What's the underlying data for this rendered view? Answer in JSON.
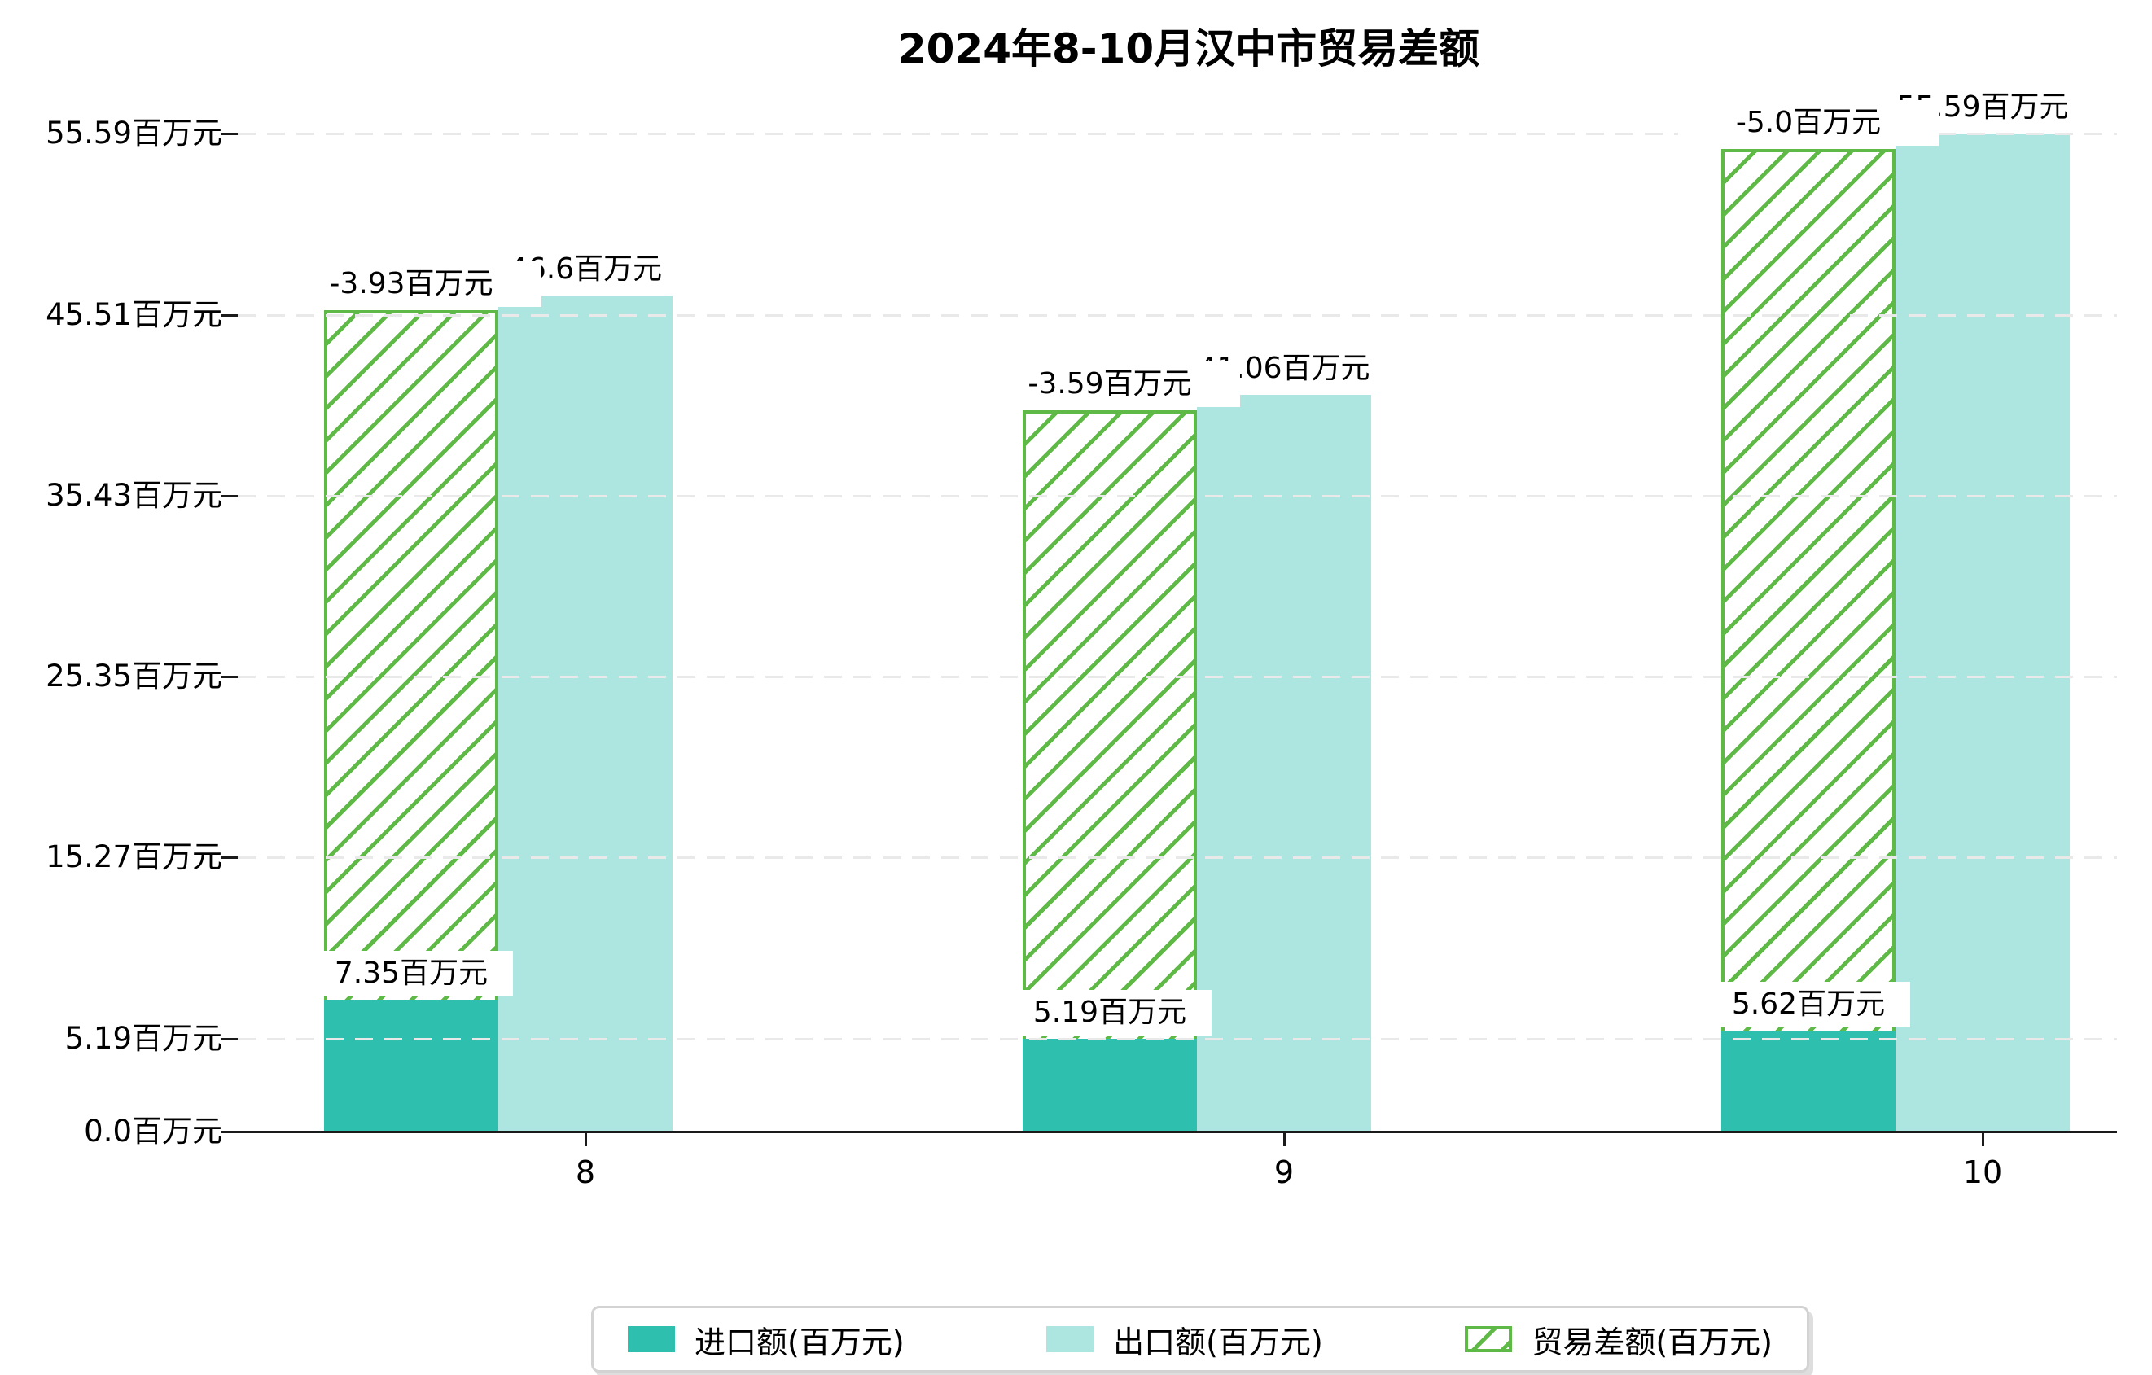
{
  "chart_data": {
    "type": "bar",
    "title": "2024年8-10月汉中市贸易差额",
    "categories": [
      "8",
      "9",
      "10"
    ],
    "unit": "百万元",
    "series": [
      {
        "name": "进口额(百万元)",
        "values": [
          7.35,
          5.19,
          5.62
        ],
        "labels": [
          "7.35百万元",
          "5.19百万元",
          "5.62百万元"
        ],
        "color": "#2fbfae",
        "style": "solid"
      },
      {
        "name": "出口额(百万元)",
        "values": [
          46.6,
          41.06,
          55.59
        ],
        "labels": [
          "46.6百万元",
          "41.06百万元",
          "55.59百万元"
        ],
        "labels_visible": [
          "6.6百万元",
          ".06百万元",
          "5.59百万元"
        ],
        "color": "#ade6e0",
        "style": "solid"
      },
      {
        "name": "贸易差额(百万元)",
        "values": [
          -3.93,
          -3.59,
          -5.0
        ],
        "labels": [
          "-3.93百万元",
          "-3.59百万元",
          "-5.0百万元"
        ],
        "bar_top_values": [
          45.75,
          40.21,
          54.74
        ],
        "color": "#5fb946",
        "style": "hatched",
        "hatch": "/"
      }
    ],
    "yticks": [
      {
        "value": 0,
        "label": "0.0百万元"
      },
      {
        "value": 5.19,
        "label": "5.19百万元"
      },
      {
        "value": 15.27,
        "label": "15.27百万元"
      },
      {
        "value": 25.35,
        "label": "25.35百万元"
      },
      {
        "value": 35.43,
        "label": "35.43百万元"
      },
      {
        "value": 45.51,
        "label": "45.51百万元"
      },
      {
        "value": 55.59,
        "label": "55.59百万元"
      }
    ],
    "ylim": [
      0,
      57.2
    ],
    "grid": true,
    "grid_style": "dashed",
    "legend_position": "bottom",
    "colors": {
      "axis": "#1a1a1a",
      "gridline": "#e9e9e9",
      "label_text": "#000000",
      "label_background": "#ffffff",
      "legend_border": "#d3d3d3"
    }
  }
}
